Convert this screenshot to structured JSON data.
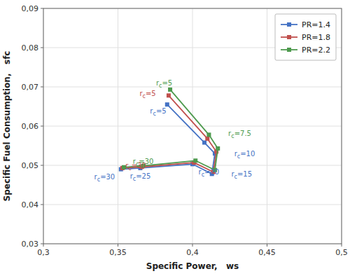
{
  "chart_data": {
    "type": "line",
    "xlabel": "Specific Power,   ws",
    "ylabel": "Specific Fuel Consumption,   sfc",
    "marker": "square",
    "grid": true,
    "legend": "upper right",
    "xlim": [
      0.3,
      0.5
    ],
    "ylim": [
      0.03,
      0.09
    ],
    "xticks": [
      {
        "value": 0.3,
        "label": "0,3"
      },
      {
        "value": 0.35,
        "label": "0,35"
      },
      {
        "value": 0.4,
        "label": "0,4"
      },
      {
        "value": 0.45,
        "label": "0,45"
      },
      {
        "value": 0.5,
        "label": "0,5"
      }
    ],
    "yticks": [
      {
        "value": 0.03,
        "label": "0,03"
      },
      {
        "value": 0.04,
        "label": "0,04"
      },
      {
        "value": 0.05,
        "label": "0,05"
      },
      {
        "value": 0.06,
        "label": "0,06"
      },
      {
        "value": 0.07,
        "label": "0,07"
      },
      {
        "value": 0.08,
        "label": "0,08"
      },
      {
        "value": 0.09,
        "label": "0,09"
      }
    ],
    "series": [
      {
        "name": "PR=1.4",
        "color": "#4472C4",
        "x": [
          0.352,
          0.365,
          0.4,
          0.413,
          0.415,
          0.408,
          0.383
        ],
        "values": [
          0.049,
          0.0493,
          0.0503,
          0.0478,
          0.053,
          0.0558,
          0.0655
        ]
      },
      {
        "name": "PR=1.8",
        "color": "#C0504D",
        "x": [
          0.353,
          0.366,
          0.401,
          0.414,
          0.416,
          0.41,
          0.384
        ],
        "values": [
          0.0493,
          0.0496,
          0.0507,
          0.0483,
          0.0535,
          0.0568,
          0.0678
        ]
      },
      {
        "name": "PR=2.2",
        "color": "#4E9A4E",
        "x": [
          0.354,
          0.367,
          0.402,
          0.415,
          0.417,
          0.411,
          0.385
        ],
        "values": [
          0.0495,
          0.0499,
          0.0512,
          0.0488,
          0.0543,
          0.0578,
          0.0693
        ]
      }
    ],
    "annotations": [
      {
        "text": "rc=30",
        "x": 0.348,
        "y": 0.047,
        "color": "#4472C4",
        "align": "right"
      },
      {
        "text": "rc=25",
        "x": 0.365,
        "y": 0.0473,
        "color": "#4472C4",
        "align": "center"
      },
      {
        "text": "rc=20",
        "x": 0.404,
        "y": 0.0483,
        "color": "#4472C4",
        "align": "left"
      },
      {
        "text": "rc=15",
        "x": 0.426,
        "y": 0.0478,
        "color": "#4472C4",
        "align": "left"
      },
      {
        "text": "rc=10",
        "x": 0.428,
        "y": 0.053,
        "color": "#4472C4",
        "align": "left"
      },
      {
        "text": "rc=5",
        "x": 0.377,
        "y": 0.0638,
        "color": "#4472C4",
        "align": "center"
      },
      {
        "text": "rc=30",
        "x": 0.355,
        "y": 0.05,
        "color": "#C0504D",
        "align": "left"
      },
      {
        "text": "rc=5",
        "x": 0.37,
        "y": 0.0683,
        "color": "#C0504D",
        "align": "center"
      },
      {
        "text": "rc=30",
        "x": 0.36,
        "y": 0.0509,
        "color": "#4E9A4E",
        "align": "left"
      },
      {
        "text": "rc=7.5",
        "x": 0.424,
        "y": 0.0581,
        "color": "#4E9A4E",
        "align": "left"
      },
      {
        "text": "rc=5",
        "x": 0.381,
        "y": 0.0709,
        "color": "#4E9A4E",
        "align": "center"
      }
    ]
  }
}
